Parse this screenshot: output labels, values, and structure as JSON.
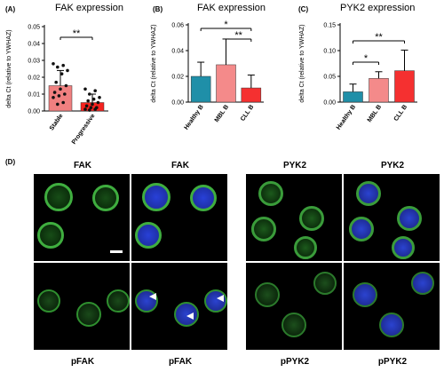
{
  "panels": {
    "a": "(A)",
    "b": "(B)",
    "c": "(C)",
    "d": "(D)"
  },
  "chart_data": [
    {
      "type": "bar",
      "title": "FAK expression",
      "ylabel": "delta Ct (relative to YWHAZ)",
      "categories": [
        "Stable",
        "Progressive"
      ],
      "values": [
        0.015,
        0.005
      ],
      "errors": [
        0.009,
        0.005
      ],
      "ylim": [
        0,
        0.05
      ],
      "yticks": [
        "0.00",
        "0.01",
        "0.02",
        "0.03",
        "0.04",
        "0.05"
      ],
      "colors": [
        "#f08080",
        "#f5231f"
      ],
      "points": [
        [
          0.028,
          0.027,
          0.026,
          0.024,
          0.022,
          0.017,
          0.015,
          0.013,
          0.011,
          0.01,
          0.009,
          0.008,
          0.005,
          0.004
        ],
        [
          0.013,
          0.012,
          0.01,
          0.008,
          0.007,
          0.006,
          0.005,
          0.004,
          0.003,
          0.002,
          0.002,
          0.001,
          0.001,
          0.0005
        ]
      ],
      "significance": [
        {
          "pair": [
            0,
            1
          ],
          "label": "**"
        }
      ]
    },
    {
      "type": "bar",
      "title": "FAK expression",
      "ylabel": "delta Ct (relative to YWHAZ)",
      "categories": [
        "Healthy B",
        "MBL B",
        "CLL B"
      ],
      "values": [
        0.02,
        0.029,
        0.011
      ],
      "errors": [
        0.011,
        0.02,
        0.01
      ],
      "ylim": [
        0,
        0.06
      ],
      "yticks": [
        "0.00",
        "0.02",
        "0.04",
        "0.06"
      ],
      "colors": [
        "#1f8fa8",
        "#f48a8a",
        "#f53030"
      ],
      "significance": [
        {
          "pair": [
            0,
            2
          ],
          "label": "*"
        },
        {
          "pair": [
            1,
            2
          ],
          "label": "**"
        }
      ]
    },
    {
      "type": "bar",
      "title": "PYK2  expression",
      "ylabel": "delta Ct (relative to YWHAZ)",
      "categories": [
        "Healthy B",
        "MBL B",
        "CLL B"
      ],
      "values": [
        0.02,
        0.046,
        0.061
      ],
      "errors": [
        0.015,
        0.013,
        0.04
      ],
      "ylim": [
        0,
        0.15
      ],
      "yticks": [
        "0.00",
        "0.05",
        "0.10",
        "0.15"
      ],
      "colors": [
        "#1f8fa8",
        "#f48a8a",
        "#f53030"
      ],
      "significance": [
        {
          "pair": [
            0,
            1
          ],
          "label": "*"
        },
        {
          "pair": [
            0,
            2
          ],
          "label": "**"
        }
      ]
    }
  ],
  "micrographs": {
    "top_labels": [
      "FAK",
      "FAK",
      "PYK2",
      "PYK2"
    ],
    "bottom_labels": [
      "pFAK",
      "pFAK",
      "pPYK2",
      "pPYK2"
    ]
  }
}
